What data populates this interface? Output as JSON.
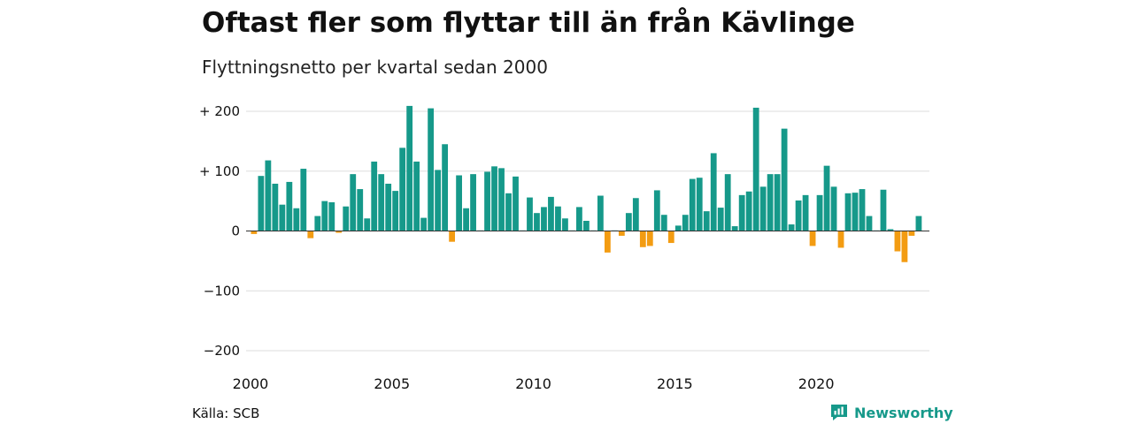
{
  "title": "Oftast fler som flyttar till än från Kävlinge",
  "subtitle": "Flyttningsnetto per kvartal sedan 2000",
  "source": "Källa: SCB",
  "brand": {
    "name": "Newsworthy",
    "icon": "newsworthy-logo-icon",
    "color": "#16998a"
  },
  "colors": {
    "positive": "#16998a",
    "negative": "#f39c12",
    "grid": "#dddddd",
    "zero": "#333333"
  },
  "chart_data": {
    "type": "bar",
    "x_start_year": 2000,
    "periods_per_year": 4,
    "xlim": [
      2000,
      2024
    ],
    "ylim": [
      -200,
      215
    ],
    "y_ticks": [
      200,
      100,
      0,
      -100,
      -200
    ],
    "y_tick_labels": [
      "+ 200",
      "+ 100",
      "0",
      "−100",
      "−200"
    ],
    "x_ticks": [
      2000,
      2005,
      2010,
      2015,
      2020
    ],
    "x_tick_labels": [
      "2000",
      "2005",
      "2010",
      "2015",
      "2020"
    ],
    "grid": true,
    "values": [
      -5,
      92,
      118,
      79,
      44,
      82,
      38,
      104,
      -12,
      25,
      50,
      48,
      -3,
      41,
      95,
      70,
      21,
      116,
      95,
      79,
      67,
      139,
      209,
      116,
      22,
      205,
      102,
      145,
      -18,
      93,
      38,
      95,
      1,
      99,
      108,
      105,
      63,
      91,
      1,
      56,
      30,
      40,
      57,
      41,
      21,
      1,
      40,
      17,
      1,
      59,
      -36,
      1,
      -8,
      30,
      55,
      -27,
      -25,
      68,
      27,
      -20,
      9,
      27,
      87,
      89,
      33,
      130,
      39,
      95,
      8,
      60,
      66,
      206,
      74,
      95,
      95,
      171,
      11,
      51,
      60,
      -25,
      60,
      109,
      74,
      -28,
      63,
      64,
      70,
      25,
      1,
      69,
      3,
      -34,
      -52,
      -8,
      25
    ]
  }
}
